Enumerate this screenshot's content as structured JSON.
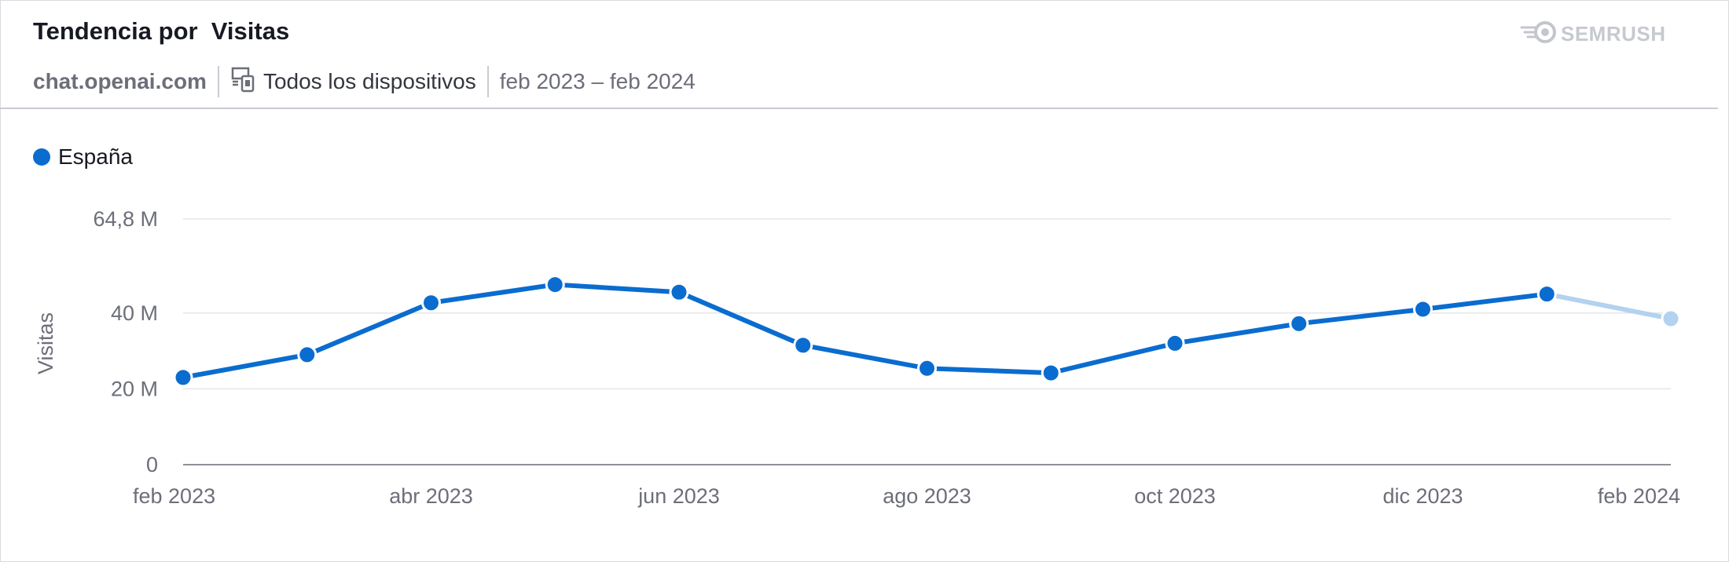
{
  "header": {
    "title": "Tendencia por  Visitas",
    "logo_text": "SEMRUSH",
    "domain": "chat.openai.com",
    "device_label": "Todos los dispositivos",
    "date_range": "feb 2023 – feb 2024"
  },
  "icons": {
    "logo": "semrush-fireball-icon",
    "devices": "devices-icon"
  },
  "colors": {
    "series": "#0a6ccf",
    "series_estimate": "#b3d2f0",
    "grid": "#e3e5e8",
    "axis": "#8d9099"
  },
  "chart_data": {
    "type": "line",
    "title": "",
    "xlabel": "",
    "ylabel": "Visitas",
    "y_ticks": [
      {
        "value": 0,
        "label": "0"
      },
      {
        "value": 20000000,
        "label": "20 M"
      },
      {
        "value": 40000000,
        "label": "40 M"
      },
      {
        "value": 64800000,
        "label": "64,8 M"
      }
    ],
    "ylim": [
      0,
      64800000
    ],
    "grid": true,
    "legend_position": "top-left",
    "x": [
      "feb 2023",
      "mar 2023",
      "abr 2023",
      "may 2023",
      "jun 2023",
      "jul 2023",
      "ago 2023",
      "sep 2023",
      "oct 2023",
      "nov 2023",
      "dic 2023",
      "ene 2024",
      "feb 2024"
    ],
    "x_tick_labels": [
      "feb 2023",
      "abr 2023",
      "jun 2023",
      "ago 2023",
      "oct 2023",
      "dic 2023",
      "feb 2024"
    ],
    "series": [
      {
        "name": "España",
        "values": [
          23000000,
          29000000,
          42700000,
          47500000,
          45500000,
          31500000,
          25400000,
          24200000,
          32000000,
          37200000,
          41000000,
          45000000,
          38500000
        ],
        "estimated_last_point": true
      }
    ]
  }
}
